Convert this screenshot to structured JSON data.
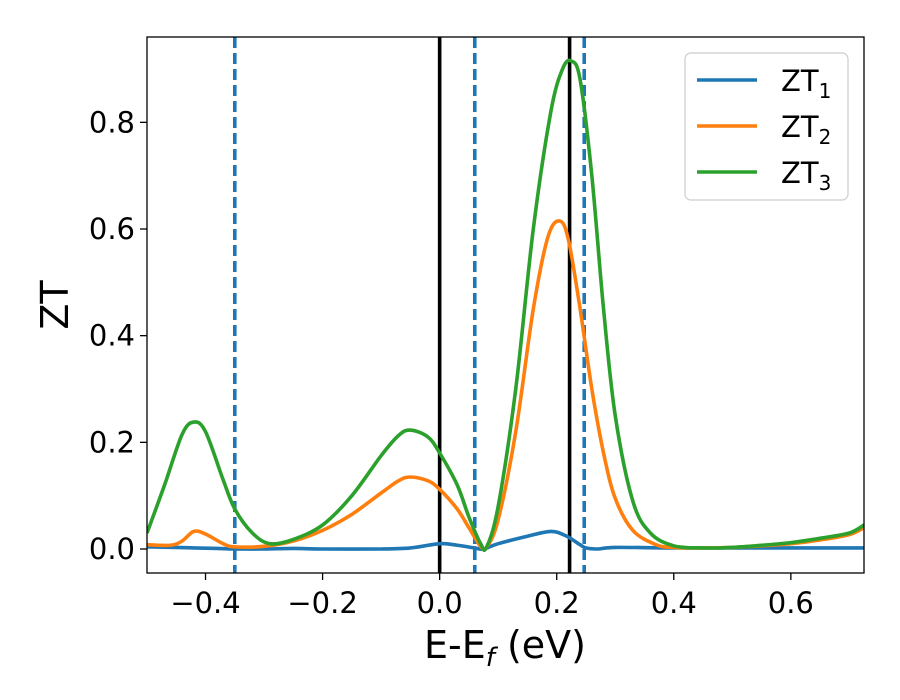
{
  "chart_data": {
    "type": "line",
    "title": "",
    "xlabel": "E-E",
    "xlabel_sub": "f",
    "xlabel_unit": " (eV)",
    "ylabel": "ZT",
    "xlim": [
      -0.5,
      0.725
    ],
    "ylim": [
      -0.045,
      0.96
    ],
    "xticks": [
      -0.4,
      -0.2,
      0.0,
      0.2,
      0.4,
      0.6
    ],
    "xtick_labels": [
      "−0.4",
      "−0.2",
      "0.0",
      "0.2",
      "0.4",
      "0.6"
    ],
    "yticks": [
      0.0,
      0.2,
      0.4,
      0.6,
      0.8
    ],
    "ytick_labels": [
      "0.0",
      "0.2",
      "0.4",
      "0.6",
      "0.8"
    ],
    "grid": false,
    "legend_position": "top-right",
    "vlines": [
      {
        "x": -0.35,
        "style": "dashed",
        "color": "#1f77b4"
      },
      {
        "x": 0.0,
        "style": "solid",
        "color": "#000000"
      },
      {
        "x": 0.06,
        "style": "dashed",
        "color": "#1f77b4"
      },
      {
        "x": 0.222,
        "style": "solid",
        "color": "#000000"
      },
      {
        "x": 0.247,
        "style": "dashed",
        "color": "#1f77b4"
      }
    ],
    "series": [
      {
        "name": "ZT",
        "sub": "1",
        "color": "#1f77b4",
        "points": [
          [
            -0.5,
            0.004
          ],
          [
            -0.45,
            0.003
          ],
          [
            -0.42,
            0.002
          ],
          [
            -0.38,
            0.001
          ],
          [
            -0.35,
            0.0
          ],
          [
            -0.3,
            0.0
          ],
          [
            -0.25,
            0.001
          ],
          [
            -0.2,
            0.0
          ],
          [
            -0.1,
            0.0
          ],
          [
            -0.05,
            0.002
          ],
          [
            0.0,
            0.01
          ],
          [
            0.03,
            0.007
          ],
          [
            0.06,
            0.002
          ],
          [
            0.075,
            0.0
          ],
          [
            0.1,
            0.01
          ],
          [
            0.15,
            0.024
          ],
          [
            0.19,
            0.033
          ],
          [
            0.215,
            0.025
          ],
          [
            0.24,
            0.008
          ],
          [
            0.25,
            0.002
          ],
          [
            0.27,
            0.0
          ],
          [
            0.3,
            0.003
          ],
          [
            0.4,
            0.002
          ],
          [
            0.5,
            0.002
          ],
          [
            0.6,
            0.002
          ],
          [
            0.725,
            0.002
          ]
        ]
      },
      {
        "name": "ZT",
        "sub": "2",
        "color": "#ff7f0e",
        "points": [
          [
            -0.5,
            0.008
          ],
          [
            -0.46,
            0.007
          ],
          [
            -0.44,
            0.015
          ],
          [
            -0.42,
            0.033
          ],
          [
            -0.4,
            0.028
          ],
          [
            -0.37,
            0.01
          ],
          [
            -0.35,
            0.004
          ],
          [
            -0.3,
            0.005
          ],
          [
            -0.25,
            0.015
          ],
          [
            -0.2,
            0.035
          ],
          [
            -0.15,
            0.065
          ],
          [
            -0.1,
            0.105
          ],
          [
            -0.07,
            0.128
          ],
          [
            -0.05,
            0.135
          ],
          [
            -0.02,
            0.128
          ],
          [
            0.0,
            0.112
          ],
          [
            0.03,
            0.075
          ],
          [
            0.05,
            0.04
          ],
          [
            0.07,
            0.005
          ],
          [
            0.08,
            0.003
          ],
          [
            0.1,
            0.055
          ],
          [
            0.13,
            0.22
          ],
          [
            0.16,
            0.45
          ],
          [
            0.185,
            0.585
          ],
          [
            0.205,
            0.615
          ],
          [
            0.22,
            0.58
          ],
          [
            0.24,
            0.45
          ],
          [
            0.26,
            0.3
          ],
          [
            0.28,
            0.18
          ],
          [
            0.3,
            0.095
          ],
          [
            0.33,
            0.035
          ],
          [
            0.37,
            0.008
          ],
          [
            0.4,
            0.003
          ],
          [
            0.45,
            0.002
          ],
          [
            0.5,
            0.003
          ],
          [
            0.55,
            0.006
          ],
          [
            0.6,
            0.01
          ],
          [
            0.65,
            0.017
          ],
          [
            0.7,
            0.027
          ],
          [
            0.725,
            0.04
          ]
        ]
      },
      {
        "name": "ZT",
        "sub": "3",
        "color": "#2ca02c",
        "points": [
          [
            -0.5,
            0.03
          ],
          [
            -0.47,
            0.12
          ],
          [
            -0.44,
            0.215
          ],
          [
            -0.42,
            0.238
          ],
          [
            -0.4,
            0.22
          ],
          [
            -0.37,
            0.13
          ],
          [
            -0.35,
            0.075
          ],
          [
            -0.32,
            0.03
          ],
          [
            -0.29,
            0.01
          ],
          [
            -0.25,
            0.018
          ],
          [
            -0.2,
            0.045
          ],
          [
            -0.15,
            0.1
          ],
          [
            -0.1,
            0.175
          ],
          [
            -0.07,
            0.213
          ],
          [
            -0.05,
            0.223
          ],
          [
            -0.02,
            0.21
          ],
          [
            0.0,
            0.18
          ],
          [
            0.03,
            0.12
          ],
          [
            0.05,
            0.06
          ],
          [
            0.07,
            0.01
          ],
          [
            0.08,
            0.003
          ],
          [
            0.1,
            0.08
          ],
          [
            0.13,
            0.3
          ],
          [
            0.16,
            0.6
          ],
          [
            0.19,
            0.82
          ],
          [
            0.21,
            0.9
          ],
          [
            0.225,
            0.915
          ],
          [
            0.24,
            0.88
          ],
          [
            0.26,
            0.7
          ],
          [
            0.28,
            0.45
          ],
          [
            0.3,
            0.25
          ],
          [
            0.33,
            0.09
          ],
          [
            0.36,
            0.03
          ],
          [
            0.4,
            0.006
          ],
          [
            0.45,
            0.002
          ],
          [
            0.5,
            0.003
          ],
          [
            0.55,
            0.007
          ],
          [
            0.6,
            0.012
          ],
          [
            0.65,
            0.02
          ],
          [
            0.7,
            0.03
          ],
          [
            0.725,
            0.045
          ]
        ]
      }
    ]
  }
}
